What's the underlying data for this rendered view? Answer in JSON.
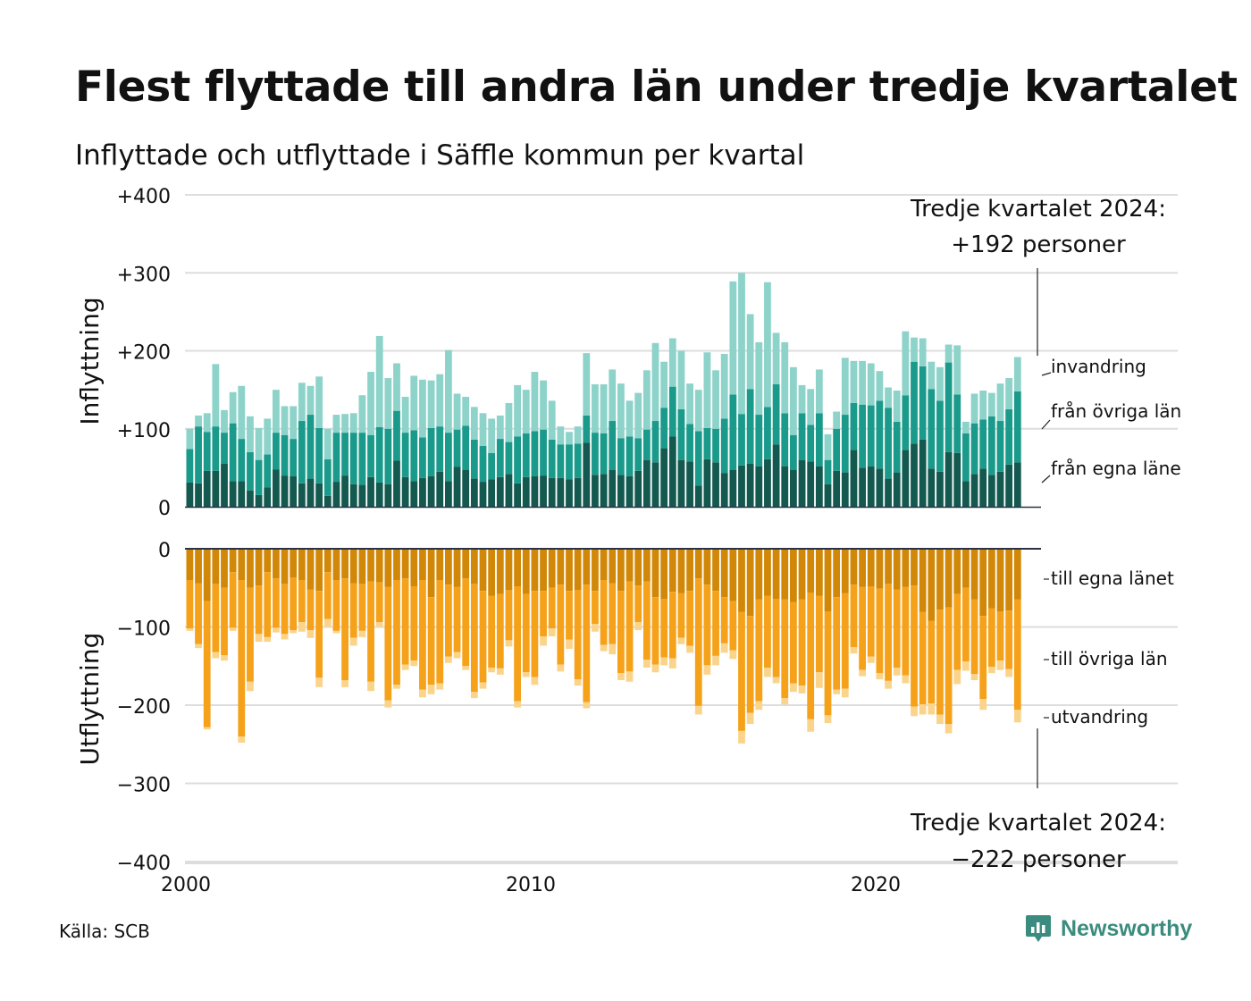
{
  "title": "Flest flyttade till andra län under tredje kvartalet",
  "subtitle": "Inflyttade och utflyttade i Säffle kommun per kvartal",
  "source": "Källa: SCB",
  "logo_text": "Newsworthy",
  "colors": {
    "in_own": "#14594f",
    "in_other": "#1a9a8a",
    "in_immig": "#8dd3ca",
    "out_own": "#d18809",
    "out_other": "#f5a21a",
    "out_emig": "#fbd48c",
    "grid": "#dddddd",
    "axis": "#2b3245",
    "logo": "#3b8c7e"
  },
  "chart_data": [
    {
      "type": "bar",
      "stacked": true,
      "ylabel": "Inflyttning",
      "ylim": [
        0,
        400
      ],
      "yticks": [
        0,
        100,
        200,
        300,
        400
      ],
      "ytick_labels": [
        "0",
        "+100",
        "+200",
        "+300",
        "+400"
      ],
      "annotation": [
        "Tredje kvartalet 2024:",
        "+192 personer"
      ],
      "x_start_year": 2000,
      "x_ticks": [
        "2000",
        "2010",
        "2020"
      ],
      "series_labels": [
        "invandring",
        "från övriga län",
        "från egna läne"
      ],
      "series": [
        {
          "name": "från egna läne",
          "values": [
            31,
            30,
            46,
            46,
            55,
            33,
            33,
            21,
            15,
            25,
            48,
            40,
            39,
            30,
            36,
            30,
            14,
            32,
            40,
            29,
            28,
            38,
            31,
            29,
            59,
            38,
            33,
            37,
            39,
            45,
            33,
            51,
            47,
            36,
            32,
            35,
            38,
            42,
            30,
            38,
            39,
            40,
            37,
            37,
            35,
            37,
            82,
            41,
            42,
            47,
            41,
            39,
            46,
            60,
            57,
            75,
            90,
            60,
            58,
            27,
            61,
            57,
            43,
            47,
            53,
            55,
            52,
            61,
            80,
            52,
            47,
            60,
            58,
            52,
            29,
            46,
            44,
            73,
            50,
            52,
            49,
            36,
            44,
            73,
            81,
            86,
            49,
            45,
            70,
            69,
            33,
            42,
            49,
            41,
            45,
            54,
            57
          ]
        },
        {
          "name": "från övriga län",
          "values": [
            43,
            73,
            50,
            57,
            40,
            74,
            54,
            49,
            45,
            42,
            47,
            52,
            48,
            80,
            82,
            71,
            47,
            63,
            55,
            66,
            67,
            54,
            71,
            71,
            64,
            57,
            65,
            52,
            62,
            58,
            62,
            48,
            57,
            50,
            46,
            34,
            49,
            41,
            60,
            56,
            58,
            59,
            49,
            43,
            45,
            44,
            35,
            54,
            52,
            63,
            47,
            51,
            42,
            39,
            53,
            52,
            64,
            65,
            48,
            70,
            40,
            43,
            70,
            97,
            66,
            96,
            66,
            67,
            77,
            68,
            45,
            60,
            47,
            68,
            31,
            54,
            74,
            60,
            81,
            78,
            87,
            91,
            65,
            70,
            105,
            94,
            102,
            91,
            115,
            75,
            61,
            65,
            63,
            75,
            65,
            71,
            91
          ]
        },
        {
          "name": "invandring",
          "values": [
            26,
            14,
            24,
            80,
            29,
            40,
            68,
            46,
            41,
            46,
            55,
            37,
            42,
            49,
            37,
            66,
            39,
            23,
            24,
            25,
            48,
            81,
            117,
            65,
            61,
            46,
            70,
            74,
            61,
            67,
            106,
            46,
            37,
            42,
            42,
            44,
            30,
            50,
            66,
            56,
            76,
            63,
            50,
            23,
            16,
            22,
            80,
            62,
            63,
            66,
            70,
            46,
            58,
            76,
            100,
            59,
            62,
            75,
            52,
            53,
            97,
            75,
            83,
            145,
            181,
            96,
            93,
            160,
            66,
            91,
            87,
            36,
            46,
            56,
            33,
            22,
            73,
            54,
            56,
            54,
            38,
            26,
            40,
            82,
            31,
            36,
            35,
            43,
            23,
            63,
            15,
            38,
            37,
            30,
            48,
            40,
            44
          ]
        }
      ]
    },
    {
      "type": "bar",
      "stacked": true,
      "ylabel": "Utflyttning",
      "ylim": [
        -400,
        0
      ],
      "yticks": [
        0,
        -100,
        -200,
        -300,
        -400
      ],
      "ytick_labels": [
        "0",
        "−100",
        "−200",
        "−300",
        "−400"
      ],
      "annotation": [
        "Tredje kvartalet 2024:",
        "−222 personer"
      ],
      "series_labels": [
        "till egna länet",
        "till övriga län",
        "utvandring"
      ],
      "series": [
        {
          "name": "till egna länet",
          "values": [
            -40,
            -44,
            -67,
            -45,
            -50,
            -30,
            -40,
            -50,
            -47,
            -30,
            -38,
            -45,
            -37,
            -40,
            -52,
            -54,
            -30,
            -40,
            -38,
            -44,
            -45,
            -42,
            -43,
            -49,
            -40,
            -38,
            -48,
            -40,
            -62,
            -40,
            -46,
            -49,
            -38,
            -45,
            -54,
            -60,
            -58,
            -53,
            -48,
            -58,
            -54,
            -54,
            -50,
            -46,
            -54,
            -53,
            -46,
            -54,
            -40,
            -44,
            -54,
            -42,
            -47,
            -42,
            -62,
            -64,
            -55,
            -57,
            -54,
            -38,
            -46,
            -54,
            -62,
            -67,
            -81,
            -86,
            -65,
            -60,
            -64,
            -65,
            -68,
            -65,
            -56,
            -60,
            -80,
            -62,
            -57,
            -46,
            -49,
            -48,
            -51,
            -45,
            -52,
            -49,
            -47,
            -81,
            -92,
            -78,
            -75,
            -58,
            -50,
            -65,
            -86,
            -76,
            -80,
            -79,
            -65
          ]
        },
        {
          "name": "till övriga län",
          "values": [
            -62,
            -78,
            -161,
            -87,
            -86,
            -71,
            -200,
            -120,
            -62,
            -83,
            -63,
            -64,
            -67,
            -54,
            -52,
            -111,
            -60,
            -65,
            -130,
            -70,
            -60,
            -128,
            -51,
            -145,
            -134,
            -110,
            -95,
            -140,
            -112,
            -132,
            -92,
            -83,
            -112,
            -138,
            -117,
            -92,
            -95,
            -64,
            -147,
            -100,
            -110,
            -58,
            -52,
            -102,
            -62,
            -114,
            -150,
            -42,
            -83,
            -78,
            -105,
            -115,
            -47,
            -100,
            -86,
            -75,
            -85,
            -57,
            -70,
            -163,
            -103,
            -83,
            -59,
            -63,
            -152,
            -124,
            -130,
            -92,
            -100,
            -126,
            -104,
            -110,
            -162,
            -98,
            -133,
            -118,
            -122,
            -80,
            -106,
            -90,
            -108,
            -124,
            -100,
            -113,
            -155,
            -118,
            -106,
            -134,
            -149,
            -97,
            -94,
            -95,
            -106,
            -75,
            -63,
            -75,
            -141
          ]
        },
        {
          "name": "utvandring",
          "values": [
            -3,
            -5,
            -3,
            -8,
            -7,
            -4,
            -8,
            -12,
            -10,
            -6,
            -6,
            -7,
            -4,
            -12,
            -10,
            -12,
            -10,
            -3,
            -9,
            -10,
            -8,
            -12,
            -6,
            -9,
            -5,
            -7,
            -7,
            -10,
            -12,
            -8,
            -8,
            -8,
            -5,
            -8,
            -8,
            -6,
            -8,
            -8,
            -8,
            -6,
            -10,
            -12,
            -10,
            -9,
            -12,
            -8,
            -8,
            -10,
            -8,
            -13,
            -9,
            -13,
            -10,
            -10,
            -10,
            -10,
            -13,
            -8,
            -9,
            -11,
            -12,
            -12,
            -12,
            -11,
            -16,
            -14,
            -11,
            -12,
            -8,
            -8,
            -11,
            -10,
            -16,
            -20,
            -10,
            -6,
            -11,
            -8,
            -8,
            -8,
            -8,
            -10,
            -10,
            -10,
            -12,
            -13,
            -14,
            -12,
            -12,
            -18,
            -12,
            -8,
            -14,
            -8,
            -12,
            -10,
            -16
          ]
        }
      ]
    }
  ]
}
